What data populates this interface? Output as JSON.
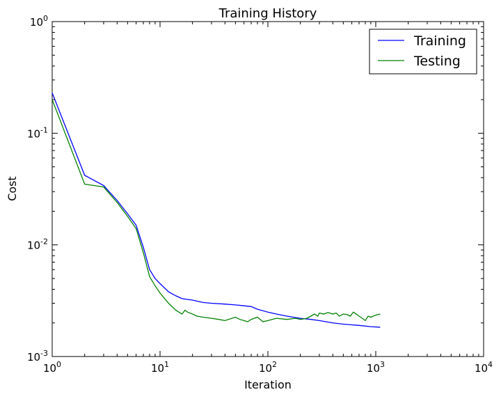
{
  "chart_data": {
    "type": "line",
    "title": "Training History",
    "xlabel": "Iteration",
    "ylabel": "Cost",
    "xscale": "log",
    "yscale": "log",
    "xlim": [
      1,
      10000
    ],
    "ylim": [
      0.001,
      1
    ],
    "grid": false,
    "legend_position": "top-right",
    "x_ticks": [
      {
        "value": 1,
        "base": "10",
        "exp": "0"
      },
      {
        "value": 10,
        "base": "10",
        "exp": "1"
      },
      {
        "value": 100,
        "base": "10",
        "exp": "2"
      },
      {
        "value": 1000,
        "base": "10",
        "exp": "3"
      },
      {
        "value": 10000,
        "base": "10",
        "exp": "4"
      }
    ],
    "y_ticks": [
      {
        "value": 0.001,
        "base": "10",
        "exp": "-3"
      },
      {
        "value": 0.01,
        "base": "10",
        "exp": "-2"
      },
      {
        "value": 0.1,
        "base": "10",
        "exp": "-1"
      },
      {
        "value": 1,
        "base": "10",
        "exp": "0"
      }
    ],
    "series": [
      {
        "name": "Training",
        "color": "#0000ff",
        "points": [
          [
            1,
            0.23
          ],
          [
            2,
            0.042
          ],
          [
            3,
            0.034
          ],
          [
            4,
            0.025
          ],
          [
            5,
            0.019
          ],
          [
            6,
            0.015
          ],
          [
            7,
            0.0095
          ],
          [
            8,
            0.006
          ],
          [
            9,
            0.005
          ],
          [
            10,
            0.0045
          ],
          [
            12,
            0.0038
          ],
          [
            14,
            0.0035
          ],
          [
            16,
            0.0033
          ],
          [
            20,
            0.0032
          ],
          [
            25,
            0.00305
          ],
          [
            30,
            0.003
          ],
          [
            40,
            0.00295
          ],
          [
            50,
            0.0029
          ],
          [
            60,
            0.00285
          ],
          [
            70,
            0.0028
          ],
          [
            80,
            0.00265
          ],
          [
            100,
            0.0025
          ],
          [
            120,
            0.0024
          ],
          [
            150,
            0.0023
          ],
          [
            200,
            0.0022
          ],
          [
            250,
            0.00215
          ],
          [
            300,
            0.0021
          ],
          [
            400,
            0.002
          ],
          [
            500,
            0.00195
          ],
          [
            700,
            0.0019
          ],
          [
            900,
            0.00185
          ],
          [
            1100,
            0.00183
          ]
        ]
      },
      {
        "name": "Testing",
        "color": "#008000",
        "points": [
          [
            1,
            0.2
          ],
          [
            2,
            0.035
          ],
          [
            3,
            0.033
          ],
          [
            4,
            0.024
          ],
          [
            5,
            0.018
          ],
          [
            6,
            0.014
          ],
          [
            7,
            0.0085
          ],
          [
            8,
            0.0052
          ],
          [
            9,
            0.0043
          ],
          [
            10,
            0.0037
          ],
          [
            12,
            0.003
          ],
          [
            14,
            0.0026
          ],
          [
            16,
            0.0024
          ],
          [
            17,
            0.0026
          ],
          [
            18,
            0.0025
          ],
          [
            20,
            0.0024
          ],
          [
            22,
            0.0023
          ],
          [
            25,
            0.00225
          ],
          [
            30,
            0.0022
          ],
          [
            35,
            0.00215
          ],
          [
            40,
            0.0021
          ],
          [
            50,
            0.00225
          ],
          [
            55,
            0.00215
          ],
          [
            60,
            0.0021
          ],
          [
            65,
            0.00205
          ],
          [
            70,
            0.00215
          ],
          [
            80,
            0.00225
          ],
          [
            90,
            0.00205
          ],
          [
            100,
            0.0021
          ],
          [
            120,
            0.0022
          ],
          [
            150,
            0.00215
          ],
          [
            180,
            0.0022
          ],
          [
            200,
            0.00215
          ],
          [
            230,
            0.0022
          ],
          [
            250,
            0.0023
          ],
          [
            270,
            0.0024
          ],
          [
            290,
            0.0023
          ],
          [
            300,
            0.00245
          ],
          [
            330,
            0.0024
          ],
          [
            360,
            0.00248
          ],
          [
            400,
            0.0024
          ],
          [
            430,
            0.00245
          ],
          [
            460,
            0.0023
          ],
          [
            500,
            0.0024
          ],
          [
            540,
            0.00238
          ],
          [
            580,
            0.0023
          ],
          [
            620,
            0.0025
          ],
          [
            660,
            0.0024
          ],
          [
            700,
            0.0023
          ],
          [
            750,
            0.0022
          ],
          [
            800,
            0.0021
          ],
          [
            850,
            0.0023
          ],
          [
            900,
            0.00225
          ],
          [
            950,
            0.0023
          ],
          [
            1000,
            0.00235
          ],
          [
            1100,
            0.0024
          ]
        ]
      }
    ]
  }
}
